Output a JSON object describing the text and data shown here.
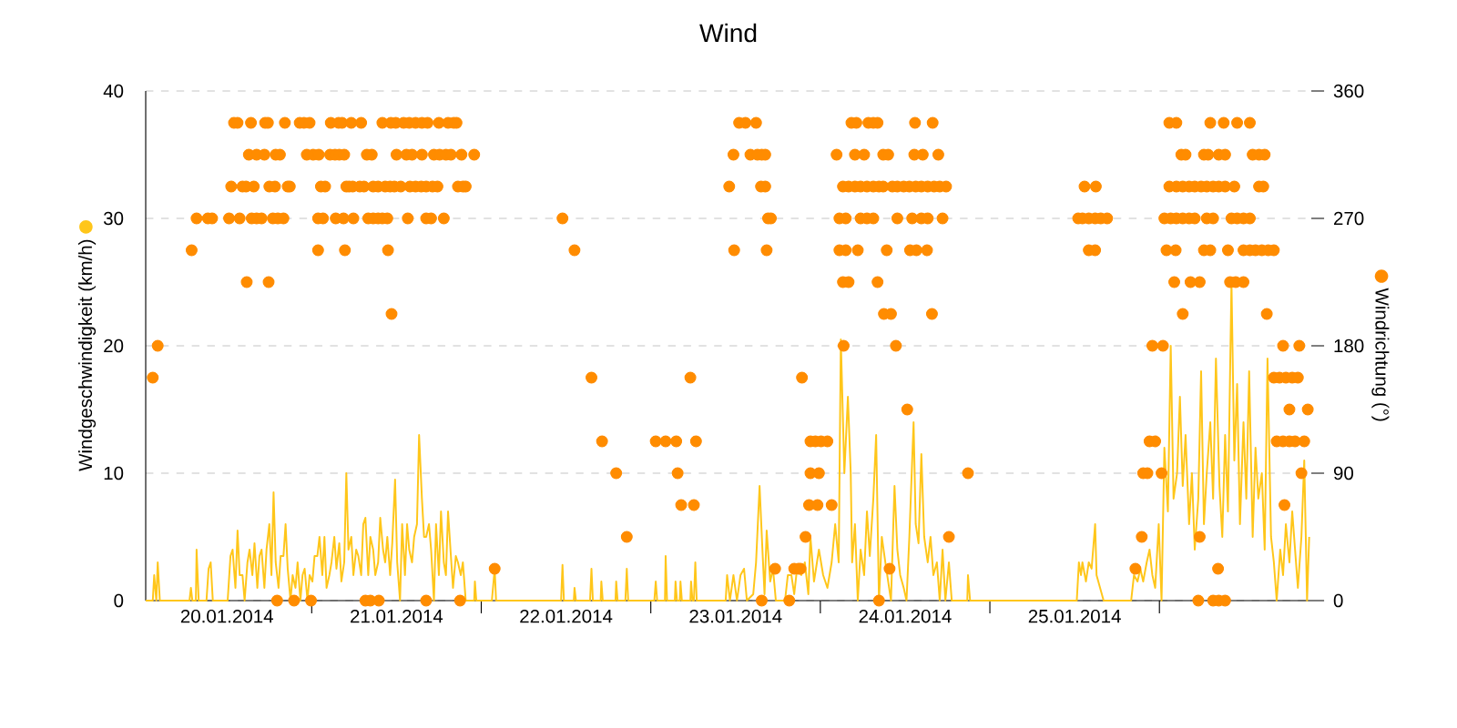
{
  "chart_data": {
    "type": "line",
    "title": "Wind",
    "ylabel": "Windgeschwindigkeit (km/h)",
    "y2label": "Windrichtung (°)",
    "xlim": [
      "2014-01-20T00:30",
      "2014-01-26T21:30"
    ],
    "xticks": [
      {
        "value": "2014-01-20T12:00",
        "label": "20.01.2014"
      },
      {
        "value": "2014-01-21",
        "label": null
      },
      {
        "value": "2014-01-21T12:00",
        "label": "21.01.2014"
      },
      {
        "value": "2014-01-22",
        "label": null
      },
      {
        "value": "2014-01-22T12:00",
        "label": "22.01.2014"
      },
      {
        "value": "2014-01-23",
        "label": null
      },
      {
        "value": "2014-01-23T12:00",
        "label": "23.01.2014"
      },
      {
        "value": "2014-01-24",
        "label": null
      },
      {
        "value": "2014-01-24T12:00",
        "label": "24.01.2014"
      },
      {
        "value": "2014-01-25",
        "label": null
      },
      {
        "value": "2014-01-25T12:00",
        "label": "25.01.2014"
      },
      {
        "value": "2014-01-26",
        "label": null
      }
    ],
    "ylim": [
      0,
      40
    ],
    "yticks": [
      0,
      10,
      20,
      30,
      40
    ],
    "y2lim": [
      0,
      360
    ],
    "y2ticks": [
      0,
      90,
      180,
      270,
      360
    ],
    "grid": "y",
    "series": [
      {
        "color": "#ffc61a",
        "x": [
          "2014-01-20T00:30",
          "2014-01-20T01:30",
          "2014-01-20T01:42",
          "2014-01-20T02:00",
          "2014-01-20T02:12",
          "2014-01-20T02:30",
          "2014-01-20T06:42",
          "2014-01-20T06:54",
          "2014-01-20T07:06",
          "2014-01-20T07:36",
          "2014-01-20T07:42",
          "2014-01-20T08:00",
          "2014-01-20T09:06",
          "2014-01-20T09:24",
          "2014-01-20T09:42",
          "2014-01-20T10:00",
          "2014-01-20T12:06",
          "2014-01-20T12:30",
          "2014-01-20T12:48",
          "2014-01-20T13:12",
          "2014-01-20T13:30",
          "2014-01-20T13:48",
          "2014-01-20T14:12",
          "2014-01-20T14:30",
          "2014-01-20T14:54",
          "2014-01-20T15:12",
          "2014-01-20T15:36",
          "2014-01-20T15:54",
          "2014-01-20T16:18",
          "2014-01-20T16:36",
          "2014-01-20T16:54",
          "2014-01-20T17:18",
          "2014-01-20T17:36",
          "2014-01-20T18:00",
          "2014-01-20T18:18",
          "2014-01-20T18:36",
          "2014-01-20T18:54",
          "2014-01-20T19:18",
          "2014-01-20T19:36",
          "2014-01-20T20:00",
          "2014-01-20T20:18",
          "2014-01-20T20:36",
          "2014-01-20T21:00",
          "2014-01-20T21:18",
          "2014-01-20T21:42",
          "2014-01-20T22:00",
          "2014-01-20T22:24",
          "2014-01-20T22:42",
          "2014-01-20T23:00",
          "2014-01-20T23:24",
          "2014-01-20T23:42",
          "2014-01-21T00:06",
          "2014-01-21T00:24",
          "2014-01-21T00:48",
          "2014-01-21T01:06",
          "2014-01-21T01:30",
          "2014-01-21T01:48",
          "2014-01-21T02:06",
          "2014-01-21T02:30",
          "2014-01-21T02:48",
          "2014-01-21T03:12",
          "2014-01-21T03:30",
          "2014-01-21T03:54",
          "2014-01-21T04:12",
          "2014-01-21T04:36",
          "2014-01-21T04:54",
          "2014-01-21T05:12",
          "2014-01-21T05:36",
          "2014-01-21T05:54",
          "2014-01-21T06:18",
          "2014-01-21T06:36",
          "2014-01-21T07:00",
          "2014-01-21T07:18",
          "2014-01-21T07:36",
          "2014-01-21T08:00",
          "2014-01-21T08:18",
          "2014-01-21T08:42",
          "2014-01-21T09:00",
          "2014-01-21T09:24",
          "2014-01-21T09:42",
          "2014-01-21T10:06",
          "2014-01-21T10:24",
          "2014-01-21T10:42",
          "2014-01-21T11:06",
          "2014-01-21T11:24",
          "2014-01-21T11:48",
          "2014-01-21T12:06",
          "2014-01-21T12:30",
          "2014-01-21T12:48",
          "2014-01-21T13:12",
          "2014-01-21T13:30",
          "2014-01-21T13:48",
          "2014-01-21T14:12",
          "2014-01-21T14:30",
          "2014-01-21T14:54",
          "2014-01-21T15:12",
          "2014-01-21T15:36",
          "2014-01-21T15:54",
          "2014-01-21T16:12",
          "2014-01-21T16:36",
          "2014-01-21T16:54",
          "2014-01-21T17:18",
          "2014-01-21T17:36",
          "2014-01-21T18:00",
          "2014-01-21T18:18",
          "2014-01-21T18:42",
          "2014-01-21T19:00",
          "2014-01-21T19:18",
          "2014-01-21T19:42",
          "2014-01-21T20:00",
          "2014-01-21T20:24",
          "2014-01-21T20:42",
          "2014-01-21T21:06",
          "2014-01-21T21:24",
          "2014-01-21T21:48",
          "2014-01-21T23:00",
          "2014-01-21T23:06",
          "2014-01-21T23:18",
          "2014-01-22T01:30",
          "2014-01-22T01:54",
          "2014-01-22T02:06",
          "2014-01-22T11:18",
          "2014-01-22T11:30",
          "2014-01-22T11:42",
          "2014-01-22T13:06",
          "2014-01-22T13:12",
          "2014-01-22T13:24",
          "2014-01-22T15:24",
          "2014-01-22T15:36",
          "2014-01-22T15:48",
          "2014-01-22T16:54",
          "2014-01-22T17:00",
          "2014-01-22T17:12",
          "2014-01-22T19:00",
          "2014-01-22T19:06",
          "2014-01-22T19:18",
          "2014-01-22T20:24",
          "2014-01-22T20:36",
          "2014-01-22T20:48",
          "2014-01-23T00:30",
          "2014-01-23T00:42",
          "2014-01-23T00:54",
          "2014-01-23T02:00",
          "2014-01-23T02:06",
          "2014-01-23T02:18",
          "2014-01-23T03:24",
          "2014-01-23T03:30",
          "2014-01-23T03:42",
          "2014-01-23T04:06",
          "2014-01-23T04:12",
          "2014-01-23T04:24",
          "2014-01-23T05:36",
          "2014-01-23T05:42",
          "2014-01-23T05:54",
          "2014-01-23T06:06",
          "2014-01-23T06:18",
          "2014-01-23T06:30",
          "2014-01-23T10:36",
          "2014-01-23T10:48",
          "2014-01-23T11:12",
          "2014-01-23T11:42",
          "2014-01-23T12:12",
          "2014-01-23T12:42",
          "2014-01-23T13:12",
          "2014-01-23T13:36",
          "2014-01-23T14:30",
          "2014-01-23T14:54",
          "2014-01-23T15:24",
          "2014-01-23T15:48",
          "2014-01-23T16:06",
          "2014-01-23T16:24",
          "2014-01-23T16:54",
          "2014-01-23T17:18",
          "2014-01-23T17:42",
          "2014-01-23T19:00",
          "2014-01-23T19:24",
          "2014-01-23T19:54",
          "2014-01-23T20:18",
          "2014-01-23T20:42",
          "2014-01-23T21:18",
          "2014-01-23T21:48",
          "2014-01-23T22:18",
          "2014-01-23T22:36",
          "2014-01-23T23:06",
          "2014-01-23T23:48",
          "2014-01-24T00:24",
          "2014-01-24T01:00",
          "2014-01-24T01:36",
          "2014-01-24T02:06",
          "2014-01-24T02:36",
          "2014-01-24T02:54",
          "2014-01-24T03:24",
          "2014-01-24T03:54",
          "2014-01-24T04:18",
          "2014-01-24T04:30",
          "2014-01-24T04:54",
          "2014-01-24T05:18",
          "2014-01-24T05:42",
          "2014-01-24T06:12",
          "2014-01-24T06:36",
          "2014-01-24T07:00",
          "2014-01-24T07:30",
          "2014-01-24T07:54",
          "2014-01-24T08:18",
          "2014-01-24T08:42",
          "2014-01-24T09:12",
          "2014-01-24T09:36",
          "2014-01-24T10:00",
          "2014-01-24T10:30",
          "2014-01-24T10:54",
          "2014-01-24T11:18",
          "2014-01-24T11:48",
          "2014-01-24T12:12",
          "2014-01-24T12:36",
          "2014-01-24T13:12",
          "2014-01-24T13:30",
          "2014-01-24T13:54",
          "2014-01-24T14:18",
          "2014-01-24T14:42",
          "2014-01-24T15:12",
          "2014-01-24T15:36",
          "2014-01-24T16:00",
          "2014-01-24T16:30",
          "2014-01-24T16:54",
          "2014-01-24T17:18",
          "2014-01-24T17:42",
          "2014-01-24T18:12",
          "2014-01-24T18:36",
          "2014-01-24T20:48",
          "2014-01-24T20:54",
          "2014-01-24T21:12",
          "2014-01-25T12:18",
          "2014-01-25T12:36",
          "2014-01-25T12:54",
          "2014-01-25T13:06",
          "2014-01-25T13:36",
          "2014-01-25T14:00",
          "2014-01-25T14:24",
          "2014-01-25T14:54",
          "2014-01-25T15:06",
          "2014-01-25T15:36",
          "2014-01-25T16:06",
          "2014-01-25T20:00",
          "2014-01-25T20:24",
          "2014-01-25T20:54",
          "2014-01-25T21:18",
          "2014-01-25T21:42",
          "2014-01-25T22:12",
          "2014-01-25T22:36",
          "2014-01-25T23:00",
          "2014-01-25T23:24",
          "2014-01-25T23:54",
          "2014-01-26T00:18",
          "2014-01-26T00:42",
          "2014-01-26T01:12",
          "2014-01-26T01:36",
          "2014-01-26T02:00",
          "2014-01-26T02:30",
          "2014-01-26T02:54",
          "2014-01-26T03:18",
          "2014-01-26T03:42",
          "2014-01-26T04:12",
          "2014-01-26T04:36",
          "2014-01-26T05:00",
          "2014-01-26T05:30",
          "2014-01-26T05:54",
          "2014-01-26T06:18",
          "2014-01-26T06:42",
          "2014-01-26T07:12",
          "2014-01-26T07:36",
          "2014-01-26T08:00",
          "2014-01-26T08:30",
          "2014-01-26T08:54",
          "2014-01-26T09:18",
          "2014-01-26T09:42",
          "2014-01-26T10:12",
          "2014-01-26T10:36",
          "2014-01-26T11:00",
          "2014-01-26T11:24",
          "2014-01-26T11:54",
          "2014-01-26T12:18",
          "2014-01-26T12:42",
          "2014-01-26T13:12",
          "2014-01-26T13:36",
          "2014-01-26T14:00",
          "2014-01-26T14:30",
          "2014-01-26T14:54",
          "2014-01-26T15:18",
          "2014-01-26T15:48",
          "2014-01-26T16:12",
          "2014-01-26T16:36",
          "2014-01-26T17:06",
          "2014-01-26T17:30",
          "2014-01-26T17:54",
          "2014-01-26T18:24",
          "2014-01-26T18:48",
          "2014-01-26T19:12",
          "2014-01-26T19:36",
          "2014-01-26T20:06",
          "2014-01-26T20:30",
          "2014-01-26T20:54",
          "2014-01-26T21:12"
        ],
        "values": [
          0,
          0,
          2,
          0,
          3,
          0,
          0,
          1,
          0,
          0,
          4,
          0,
          0,
          2.5,
          3,
          0,
          0,
          3.5,
          4,
          1,
          5.5,
          2,
          2,
          0,
          3,
          4,
          2,
          4.5,
          1,
          3.5,
          4,
          1,
          4,
          6,
          2,
          8.5,
          3,
          1,
          3.5,
          3.5,
          6,
          2.5,
          0,
          2,
          1,
          3,
          0,
          2,
          2.5,
          0,
          2,
          1.5,
          3.5,
          3.5,
          5,
          2,
          5,
          1,
          2,
          3,
          5,
          2.5,
          4.5,
          1.5,
          3,
          10,
          4,
          5,
          2,
          4,
          3.5,
          2,
          6,
          6.5,
          2,
          5,
          4,
          2,
          3,
          6.5,
          4,
          3,
          5,
          2,
          4.5,
          9.5,
          3,
          0,
          6,
          2,
          6,
          4,
          3,
          5,
          6,
          13,
          8,
          5,
          5,
          6,
          4,
          0,
          6,
          2,
          7,
          3,
          2,
          7,
          3.5,
          1,
          3.5,
          3,
          2,
          3,
          0,
          0,
          1.5,
          0,
          0,
          2.5,
          0,
          0,
          2.8,
          0,
          0,
          1,
          0,
          0,
          2.5,
          0,
          0,
          1.5,
          0,
          0,
          1.5,
          0,
          0,
          2.5,
          0,
          0,
          1.5,
          0,
          0,
          3.5,
          0,
          0,
          1.5,
          0,
          0,
          1.5,
          0,
          0,
          1.5,
          0,
          0,
          3,
          0,
          0,
          2,
          0,
          2,
          0,
          2,
          2.5,
          0,
          0.5,
          3,
          9,
          4,
          0.5,
          5.5,
          1.5,
          2.5,
          0,
          0,
          2,
          2,
          0.5,
          2.5,
          2,
          3,
          0.5,
          5,
          1.5,
          4,
          2,
          1,
          3,
          6,
          3,
          20.5,
          10,
          16,
          10,
          3,
          6,
          0,
          4,
          2,
          7,
          3.5,
          8,
          13,
          0,
          5,
          3,
          1.5,
          0,
          9,
          4,
          2,
          1,
          0,
          5,
          14,
          6,
          4.5,
          11.5,
          5,
          3,
          5,
          2,
          3,
          0,
          4,
          0,
          3,
          0,
          0,
          2,
          0,
          0,
          3,
          2,
          3,
          1.5,
          3,
          2.5,
          6,
          2,
          1,
          0,
          0,
          2,
          1.5,
          2.5,
          1.5,
          3,
          4,
          2,
          1,
          6,
          0,
          12,
          7,
          20,
          8,
          10,
          16,
          9,
          13,
          6,
          10,
          4,
          8,
          18,
          6,
          10,
          14,
          8,
          19,
          9,
          5,
          13,
          7,
          25,
          11,
          17,
          6,
          14,
          8,
          18,
          5,
          12,
          8,
          10,
          4,
          19,
          5,
          3,
          0,
          4,
          2,
          6,
          3,
          7,
          4,
          1,
          5,
          11,
          0,
          5
        ]
      },
      {
        "type": "scatter",
        "axis": "y2",
        "marker": "circle",
        "color": "#ff8c00",
        "x": [
          "2014-01-20T01:30",
          "2014-01-20T02:12",
          "2014-01-20T07:00",
          "2014-01-20T07:42",
          "2014-01-20T09:18",
          "2014-01-20T09:54",
          "2014-01-20T12:18",
          "2014-01-20T13:48",
          "2014-01-20T15:30",
          "2014-01-20T16:12",
          "2014-01-20T16:54",
          "2014-01-20T18:30",
          "2014-01-20T19:12",
          "2014-01-20T20:00",
          "2014-01-20T12:36",
          "2014-01-20T14:12",
          "2014-01-20T14:42",
          "2014-01-20T15:48",
          "2014-01-20T18:00",
          "2014-01-20T18:48",
          "2014-01-20T20:36",
          "2014-01-20T20:54",
          "2014-01-20T15:06",
          "2014-01-20T16:12",
          "2014-01-20T17:18",
          "2014-01-20T18:54",
          "2014-01-20T19:30",
          "2014-01-20T13:00",
          "2014-01-20T13:30",
          "2014-01-20T15:24",
          "2014-01-20T17:24",
          "2014-01-20T17:48",
          "2014-01-20T20:12",
          "2014-01-20T22:18",
          "2014-01-20T22:54",
          "2014-01-20T23:42",
          "2014-01-20T14:48",
          "2014-01-20T17:54",
          "2014-01-20T19:06",
          "2014-01-20T21:30",
          "2014-01-20T23:54",
          "2014-01-21T02:42",
          "2014-01-21T03:48",
          "2014-01-21T04:18",
          "2014-01-21T05:36",
          "2014-01-21T07:00",
          "2014-01-21T10:00",
          "2014-01-21T11:12",
          "2014-01-21T11:54",
          "2014-01-21T13:00",
          "2014-01-21T13:48",
          "2014-01-21T14:42",
          "2014-01-21T15:36",
          "2014-01-21T16:24",
          "2014-01-21T18:00",
          "2014-01-21T19:18",
          "2014-01-21T20:06",
          "2014-01-21T20:30",
          "2014-01-20T23:18",
          "2014-01-21T00:12",
          "2014-01-21T01:00",
          "2014-01-21T02:36",
          "2014-01-21T03:18",
          "2014-01-21T03:54",
          "2014-01-21T04:36",
          "2014-01-21T07:48",
          "2014-01-21T08:30",
          "2014-01-21T12:00",
          "2014-01-21T13:24",
          "2014-01-21T14:12",
          "2014-01-21T15:36",
          "2014-01-21T17:18",
          "2014-01-21T18:06",
          "2014-01-21T19:00",
          "2014-01-21T19:42",
          "2014-01-21T21:12",
          "2014-01-21T23:00",
          "2014-01-21T01:18",
          "2014-01-21T01:54",
          "2014-01-21T04:54",
          "2014-01-21T05:18",
          "2014-01-21T05:48",
          "2014-01-21T06:48",
          "2014-01-21T07:24",
          "2014-01-21T08:42",
          "2014-01-21T09:24",
          "2014-01-21T10:24",
          "2014-01-21T11:06",
          "2014-01-21T11:42",
          "2014-01-21T12:36",
          "2014-01-21T13:54",
          "2014-01-21T14:42",
          "2014-01-21T15:30",
          "2014-01-21T16:12",
          "2014-01-21T17:06",
          "2014-01-21T17:48",
          "2014-01-21T20:42",
          "2014-01-21T21:24",
          "2014-01-21T21:48",
          "2014-01-21T00:54",
          "2014-01-21T01:36",
          "2014-01-21T03:24",
          "2014-01-21T04:30",
          "2014-01-21T05:54",
          "2014-01-21T08:00",
          "2014-01-21T08:42",
          "2014-01-21T09:24",
          "2014-01-21T10:00",
          "2014-01-21T10:42",
          "2014-01-21T13:36",
          "2014-01-21T16:12",
          "2014-01-21T16:54",
          "2014-01-21T18:42",
          "2014-01-21T00:54",
          "2014-01-21T04:42",
          "2014-01-21T10:48",
          "2014-01-21T11:18",
          "2014-01-21T07:36",
          "2014-01-21T08:18",
          "2014-01-21T09:30",
          "2014-01-21T16:12",
          "2014-01-21T21:00",
          "2014-01-22T01:54",
          "2014-01-22T11:30",
          "2014-01-22T13:12",
          "2014-01-22T15:36",
          "2014-01-22T17:06",
          "2014-01-22T19:06",
          "2014-01-22T20:36",
          "2014-01-23T00:42",
          "2014-01-23T02:06",
          "2014-01-23T03:36",
          "2014-01-23T06:24",
          "2014-01-23T03:48",
          "2014-01-23T04:18",
          "2014-01-23T06:06",
          "2014-01-23T05:36",
          "2014-01-23T12:30",
          "2014-01-23T13:24",
          "2014-01-23T14:54",
          "2014-01-23T11:42",
          "2014-01-23T14:06",
          "2014-01-23T15:06",
          "2014-01-23T15:42",
          "2014-01-23T16:12",
          "2014-01-23T11:06",
          "2014-01-23T15:36",
          "2014-01-23T16:12",
          "2014-01-23T16:36",
          "2014-01-23T17:00",
          "2014-01-23T11:48",
          "2014-01-23T16:24",
          "2014-01-23T17:36",
          "2014-01-23T20:18",
          "2014-01-23T20:54",
          "2014-01-23T21:12",
          "2014-01-23T15:42",
          "2014-01-23T19:36",
          "2014-01-23T21:24",
          "2014-01-23T22:36",
          "2014-01-23T23:18",
          "2014-01-24T00:06",
          "2014-01-24T01:00",
          "2014-01-23T22:36",
          "2014-01-23T23:48",
          "2014-01-23T22:24",
          "2014-01-23T23:36",
          "2014-01-24T01:36",
          "2014-01-23T21:54",
          "2014-01-24T04:24",
          "2014-01-24T05:06",
          "2014-01-24T06:48",
          "2014-01-24T07:30",
          "2014-01-24T08:06",
          "2014-01-24T13:24",
          "2014-01-24T15:54",
          "2014-01-24T02:18",
          "2014-01-24T04:54",
          "2014-01-24T06:12",
          "2014-01-24T08:54",
          "2014-01-24T09:36",
          "2014-01-24T13:18",
          "2014-01-24T14:30",
          "2014-01-24T16:42",
          "2014-01-24T03:12",
          "2014-01-24T04:00",
          "2014-01-24T04:54",
          "2014-01-24T05:42",
          "2014-01-24T06:36",
          "2014-01-24T07:30",
          "2014-01-24T08:18",
          "2014-01-24T08:54",
          "2014-01-24T10:12",
          "2014-01-24T10:54",
          "2014-01-24T11:48",
          "2014-01-24T12:36",
          "2014-01-24T13:30",
          "2014-01-24T14:18",
          "2014-01-24T15:12",
          "2014-01-24T16:06",
          "2014-01-24T16:54",
          "2014-01-24T17:48",
          "2014-01-24T02:42",
          "2014-01-24T03:36",
          "2014-01-24T05:42",
          "2014-01-24T06:36",
          "2014-01-24T07:30",
          "2014-01-24T10:54",
          "2014-01-24T13:00",
          "2014-01-24T14:18",
          "2014-01-24T15:12",
          "2014-01-24T17:18",
          "2014-01-24T02:42",
          "2014-01-24T03:36",
          "2014-01-24T05:18",
          "2014-01-24T09:24",
          "2014-01-24T12:42",
          "2014-01-24T13:36",
          "2014-01-24T15:06",
          "2014-01-24T03:12",
          "2014-01-24T04:00",
          "2014-01-24T08:06",
          "2014-01-24T09:00",
          "2014-01-24T10:00",
          "2014-01-24T15:48",
          "2014-01-24T03:18",
          "2014-01-24T10:42",
          "2014-01-24T12:18",
          "2014-01-24T18:12",
          "2014-01-24T09:48",
          "2014-01-24T08:18",
          "2014-01-24T20:54",
          "2014-01-25T13:24",
          "2014-01-25T15:00",
          "2014-01-25T12:30",
          "2014-01-25T13:06",
          "2014-01-25T14:00",
          "2014-01-25T14:54",
          "2014-01-25T15:42",
          "2014-01-25T16:36",
          "2014-01-25T14:00",
          "2014-01-25T14:54",
          "2014-01-25T21:42",
          "2014-01-25T22:18",
          "2014-01-26T00:18",
          "2014-01-25T22:36",
          "2014-01-25T23:24",
          "2014-01-25T20:36",
          "2014-01-25T21:30",
          "2014-01-25T23:00",
          "2014-01-26T00:30",
          "2014-01-26T01:24",
          "2014-01-26T02:24",
          "2014-01-26T07:12",
          "2014-01-26T09:06",
          "2014-01-26T11:00",
          "2014-01-26T12:48",
          "2014-01-26T03:06",
          "2014-01-26T03:42",
          "2014-01-26T06:18",
          "2014-01-26T06:54",
          "2014-01-26T08:24",
          "2014-01-26T09:18",
          "2014-01-26T13:12",
          "2014-01-26T14:06",
          "2014-01-26T14:54",
          "2014-01-26T01:24",
          "2014-01-26T02:24",
          "2014-01-26T03:18",
          "2014-01-26T04:12",
          "2014-01-26T05:00",
          "2014-01-26T05:54",
          "2014-01-26T06:42",
          "2014-01-26T07:36",
          "2014-01-26T08:24",
          "2014-01-26T09:18",
          "2014-01-26T10:36",
          "2014-01-26T14:06",
          "2014-01-26T14:42",
          "2014-01-26T00:42",
          "2014-01-26T01:36",
          "2014-01-26T02:24",
          "2014-01-26T03:18",
          "2014-01-26T04:12",
          "2014-01-26T05:00",
          "2014-01-26T06:42",
          "2014-01-26T07:36",
          "2014-01-26T10:12",
          "2014-01-26T11:00",
          "2014-01-26T11:54",
          "2014-01-26T12:48",
          "2014-01-26T01:00",
          "2014-01-26T02:18",
          "2014-01-26T06:18",
          "2014-01-26T07:12",
          "2014-01-26T09:42",
          "2014-01-26T11:54",
          "2014-01-26T12:48",
          "2014-01-26T13:36",
          "2014-01-26T14:30",
          "2014-01-26T15:24",
          "2014-01-26T16:12",
          "2014-01-26T02:06",
          "2014-01-26T04:24",
          "2014-01-26T05:42",
          "2014-01-26T10:00",
          "2014-01-26T10:48",
          "2014-01-26T11:54",
          "2014-01-26T03:18",
          "2014-01-26T15:12",
          "2014-01-26T17:30",
          "2014-01-26T19:48",
          "2014-01-26T16:12",
          "2014-01-26T17:00",
          "2014-01-26T17:54",
          "2014-01-26T18:48",
          "2014-01-26T19:36",
          "2014-01-26T18:24",
          "2014-01-26T21:00",
          "2014-01-26T16:36",
          "2014-01-26T17:30",
          "2014-01-26T18:24",
          "2014-01-26T19:12",
          "2014-01-26T20:30",
          "2014-01-26T20:06",
          "2014-01-26T17:42",
          "2014-01-26T05:42",
          "2014-01-26T08:18",
          "2014-01-26T05:30",
          "2014-01-26T07:36",
          "2014-01-26T08:24",
          "2014-01-26T09:18"
        ],
        "values": [
          157.5,
          180,
          247.5,
          270,
          270,
          270,
          270,
          270,
          270,
          270,
          270,
          270,
          270,
          270,
          292.5,
          292.5,
          292.5,
          292.5,
          292.5,
          292.5,
          292.5,
          292.5,
          315,
          315,
          315,
          315,
          315,
          337.5,
          337.5,
          337.5,
          337.5,
          337.5,
          337.5,
          337.5,
          337.5,
          337.5,
          225,
          225,
          0,
          0,
          0,
          337.5,
          337.5,
          337.5,
          337.5,
          337.5,
          337.5,
          337.5,
          337.5,
          337.5,
          337.5,
          337.5,
          337.5,
          337.5,
          337.5,
          337.5,
          337.5,
          337.5,
          315,
          315,
          315,
          315,
          315,
          315,
          315,
          315,
          315,
          315,
          315,
          315,
          315,
          315,
          315,
          315,
          315,
          315,
          315,
          292.5,
          292.5,
          292.5,
          292.5,
          292.5,
          292.5,
          292.5,
          292.5,
          292.5,
          292.5,
          292.5,
          292.5,
          292.5,
          292.5,
          292.5,
          292.5,
          292.5,
          292.5,
          292.5,
          292.5,
          292.5,
          292.5,
          270,
          270,
          270,
          270,
          270,
          270,
          270,
          270,
          270,
          270,
          270,
          270,
          270,
          270,
          247.5,
          247.5,
          247.5,
          202.5,
          0,
          0,
          0,
          0,
          0,
          22.5,
          270,
          247.5,
          157.5,
          112.5,
          90,
          45,
          112.5,
          112.5,
          112.5,
          112.5,
          90,
          67.5,
          67.5,
          157.5,
          337.5,
          337.5,
          337.5,
          315,
          315,
          315,
          315,
          315,
          292.5,
          292.5,
          292.5,
          270,
          270,
          247.5,
          247.5,
          22.5,
          22.5,
          22.5,
          22.5,
          0,
          0,
          157.5,
          112.5,
          112.5,
          112.5,
          112.5,
          90,
          90,
          67.5,
          67.5,
          67.5,
          45,
          337.5,
          337.5,
          337.5,
          337.5,
          337.5,
          337.5,
          337.5,
          315,
          315,
          315,
          315,
          315,
          315,
          315,
          315,
          292.5,
          292.5,
          292.5,
          292.5,
          292.5,
          292.5,
          292.5,
          292.5,
          292.5,
          292.5,
          292.5,
          292.5,
          292.5,
          292.5,
          292.5,
          292.5,
          292.5,
          292.5,
          270,
          270,
          270,
          270,
          270,
          270,
          270,
          270,
          270,
          270,
          247.5,
          247.5,
          247.5,
          247.5,
          247.5,
          247.5,
          247.5,
          225,
          225,
          225,
          202.5,
          202.5,
          202.5,
          180,
          180,
          135,
          45,
          22.5,
          0,
          90,
          292.5,
          292.5,
          270,
          270,
          270,
          270,
          270,
          270,
          247.5,
          247.5,
          90,
          90,
          90,
          112.5,
          112.5,
          22.5,
          45,
          180,
          180,
          337.5,
          337.5,
          337.5,
          337.5,
          337.5,
          337.5,
          315,
          315,
          315,
          315,
          315,
          315,
          315,
          315,
          315,
          292.5,
          292.5,
          292.5,
          292.5,
          292.5,
          292.5,
          292.5,
          292.5,
          292.5,
          292.5,
          292.5,
          292.5,
          292.5,
          270,
          270,
          270,
          270,
          270,
          270,
          270,
          270,
          270,
          270,
          270,
          270,
          247.5,
          247.5,
          247.5,
          247.5,
          247.5,
          247.5,
          247.5,
          247.5,
          247.5,
          247.5,
          247.5,
          225,
          225,
          225,
          225,
          225,
          225,
          202.5,
          202.5,
          180,
          180,
          157.5,
          157.5,
          157.5,
          157.5,
          157.5,
          135,
          135,
          112.5,
          112.5,
          112.5,
          112.5,
          112.5,
          90,
          67.5,
          45,
          22.5,
          0,
          0,
          0,
          0
        ]
      }
    ]
  }
}
